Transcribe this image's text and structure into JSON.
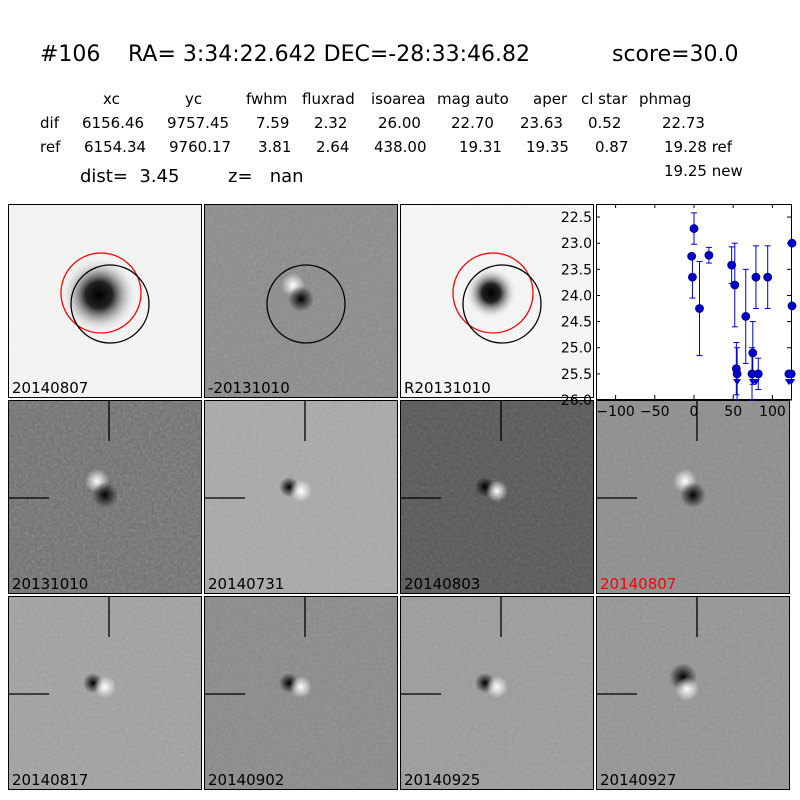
{
  "header": {
    "candidate_id": "#106",
    "ra_dec": "RA= 3:34:22.642 DEC=-28:33:46.82",
    "score": "score=30.0"
  },
  "table": {
    "columns": [
      "xc",
      "yc",
      "fwhm",
      "fluxrad",
      "isoarea",
      "mag auto",
      "aper",
      "cl star",
      "phmag"
    ],
    "rows": [
      {
        "label": "dif",
        "values": [
          "6156.46",
          "9757.45",
          "7.59",
          "2.32",
          "26.00",
          "22.70",
          "23.63",
          "0.52",
          "22.73"
        ]
      },
      {
        "label": "ref",
        "values": [
          "6154.34",
          "9760.17",
          "3.81",
          "2.64",
          "438.00",
          "19.31",
          "19.35",
          "0.87",
          "19.28 ref"
        ]
      }
    ],
    "extra_phmag": "19.25 new"
  },
  "info": {
    "dist": "dist=  3.45",
    "z": "z=   nan"
  },
  "panels": [
    {
      "label": "20140807",
      "bg": "#f4f4f4",
      "kind": "ref_dark",
      "circles": true,
      "label_color": "#000000"
    },
    {
      "label": "-20131010",
      "bg": "#8c8c8c",
      "kind": "dipole_vert",
      "circles": true,
      "label_color": "#000000"
    },
    {
      "label": "R20131010",
      "bg": "#f6f6f6",
      "kind": "ref_dark_small",
      "circles": true,
      "label_color": "#000000"
    },
    {
      "label": "20131010",
      "bg": "#6e6e6e",
      "kind": "dipole_noisy",
      "circles": false,
      "label_color": "#000000"
    },
    {
      "label": "20140731",
      "bg": "#a9a9a9",
      "kind": "dipole_h",
      "circles": false,
      "label_color": "#000000"
    },
    {
      "label": "20140803",
      "bg": "#565656",
      "kind": "dipole_h_dark",
      "circles": false,
      "label_color": "#000000"
    },
    {
      "label": "20140807",
      "bg": "#8e8e8e",
      "kind": "dipole_vert",
      "circles": false,
      "label_color": "#ff0000"
    },
    {
      "label": "20140817",
      "bg": "#a2a2a2",
      "kind": "dipole_h",
      "circles": false,
      "label_color": "#000000"
    },
    {
      "label": "20140902",
      "bg": "#8a8a8a",
      "kind": "dipole_h",
      "circles": false,
      "label_color": "#000000"
    },
    {
      "label": "20140925",
      "bg": "#9c9c9c",
      "kind": "dipole_h",
      "circles": false,
      "label_color": "#000000"
    },
    {
      "label": "20140927",
      "bg": "#959595",
      "kind": "dipole_v2",
      "circles": false,
      "label_color": "#000000"
    }
  ],
  "chart_data": {
    "type": "scatter",
    "xlim": [
      -125,
      125
    ],
    "ylim": [
      26.0,
      22.25
    ],
    "x_ticks": [
      -100,
      -50,
      0,
      50,
      100
    ],
    "x_tick_labels": [
      "−100",
      "−50",
      "0",
      "50",
      "100"
    ],
    "y_ticks": [
      22.5,
      23.0,
      23.5,
      24.0,
      24.5,
      25.0,
      25.5,
      26.0
    ],
    "y_tick_labels": [
      "22.5",
      "23.0",
      "23.5",
      "24.0",
      "24.5",
      "25.0",
      "25.5",
      "26.0"
    ],
    "marker_color": "#0000cc",
    "points": [
      {
        "x": -3,
        "y": 23.25,
        "err": 0.0
      },
      {
        "x": -2,
        "y": 23.65,
        "err": 0.4
      },
      {
        "x": 0,
        "y": 22.72,
        "err": 0.3
      },
      {
        "x": 7,
        "y": 24.25,
        "err": 0.9
      },
      {
        "x": 19,
        "y": 23.23,
        "err": 0.15
      },
      {
        "x": 48,
        "y": 23.42,
        "err": 0.35
      },
      {
        "x": 52,
        "y": 23.8,
        "err": 0.8
      },
      {
        "x": 54,
        "y": 25.4,
        "err": 0.5
      },
      {
        "x": 55,
        "y": 25.5,
        "err": 0.5
      },
      {
        "x": 66,
        "y": 24.4,
        "err": 0.9
      },
      {
        "x": 74,
        "y": 25.5,
        "err": 0.5
      },
      {
        "x": 75,
        "y": 25.1,
        "err": 0.6
      },
      {
        "x": 79,
        "y": 23.65,
        "err": 0.6
      },
      {
        "x": 82,
        "y": 25.5,
        "err": 0.3
      },
      {
        "x": 94,
        "y": 23.65,
        "err": 0.6
      },
      {
        "x": 121,
        "y": 25.5,
        "err": 0.05
      },
      {
        "x": 124,
        "y": 25.5,
        "err": 0.05
      },
      {
        "x": 125,
        "y": 23.0,
        "err": 0.0
      },
      {
        "x": 125,
        "y": 24.2,
        "err": 0.0
      }
    ],
    "upper_limits": [
      {
        "x": 55,
        "y": 25.6
      },
      {
        "x": 75,
        "y": 25.6
      },
      {
        "x": 79,
        "y": 25.6
      },
      {
        "x": 121,
        "y": 25.6
      },
      {
        "x": 124,
        "y": 25.6
      }
    ]
  }
}
